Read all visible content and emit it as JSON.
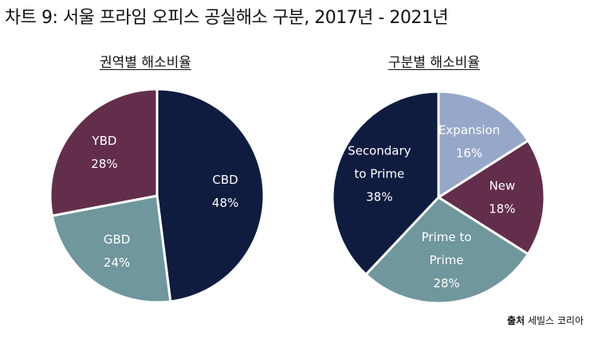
{
  "title": "차트 9: 서울 프라임 오피스 공실해소 구분, 2017년 - 2021년",
  "source": {
    "label": "출처",
    "text": "세빌스 코리아"
  },
  "chart_data": [
    {
      "type": "pie",
      "title": "권역별 해소비율",
      "slices": [
        {
          "name": "CBD",
          "label_lines": [
            "CBD"
          ],
          "value": 48,
          "value_label": "48%",
          "color": "#0f1c3f",
          "text_color": "#ffffff"
        },
        {
          "name": "GBD",
          "label_lines": [
            "GBD"
          ],
          "value": 24,
          "value_label": "24%",
          "color": "#6f979d",
          "text_color": "#ffffff"
        },
        {
          "name": "YBD",
          "label_lines": [
            "YBD"
          ],
          "value": 28,
          "value_label": "28%",
          "color": "#632e4b",
          "text_color": "#ffffff"
        }
      ]
    },
    {
      "type": "pie",
      "title": "구분별 해소비율",
      "slices": [
        {
          "name": "Expansion",
          "label_lines": [
            "Expansion"
          ],
          "value": 16,
          "value_label": "16%",
          "color": "#97a7c9",
          "text_color": "#ffffff"
        },
        {
          "name": "New",
          "label_lines": [
            "New"
          ],
          "value": 18,
          "value_label": "18%",
          "color": "#632e4b",
          "text_color": "#ffffff"
        },
        {
          "name": "Prime to Prime",
          "label_lines": [
            "Prime to",
            "Prime"
          ],
          "value": 28,
          "value_label": "28%",
          "color": "#6f979d",
          "text_color": "#ffffff"
        },
        {
          "name": "Secondary to Prime",
          "label_lines": [
            "Secondary",
            "to Prime"
          ],
          "value": 38,
          "value_label": "38%",
          "color": "#0f1c3f",
          "text_color": "#ffffff"
        }
      ]
    }
  ]
}
